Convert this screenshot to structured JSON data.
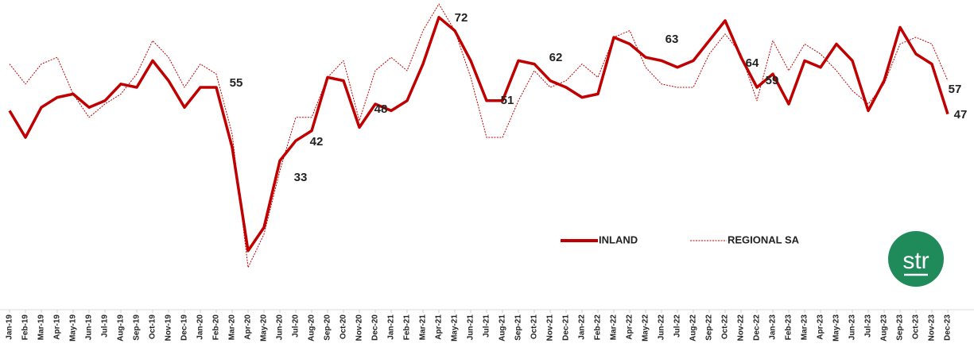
{
  "chart_data": {
    "type": "line",
    "categories": [
      "Jan-19",
      "Feb-19",
      "Mar-19",
      "Apr-19",
      "May-19",
      "Jun-19",
      "Jul-19",
      "Aug-19",
      "Sep-19",
      "Oct-19",
      "Nov-19",
      "Dec-19",
      "Jan-20",
      "Feb-20",
      "Mar-20",
      "Apr-20",
      "May-20",
      "Jun-20",
      "Jul-20",
      "Aug-20",
      "Sep-20",
      "Oct-20",
      "Nov-20",
      "Dec-20",
      "Jan-21",
      "Feb-21",
      "Mar-21",
      "Apr-21",
      "May-21",
      "Jun-21",
      "Jul-21",
      "Aug-21",
      "Sep-21",
      "Oct-21",
      "Nov-21",
      "Dec-21",
      "Jan-22",
      "Feb-22",
      "Mar-22",
      "Apr-22",
      "May-22",
      "Jun-22",
      "Jul-22",
      "Aug-22",
      "Sep-22",
      "Oct-22",
      "Nov-22",
      "Dec-22",
      "Jan-23",
      "Feb-23",
      "Mar-23",
      "Apr-23",
      "May-23",
      "Jun-23",
      "Jul-23",
      "Aug-23",
      "Sep-23",
      "Oct-23",
      "Nov-23",
      "Dec-23"
    ],
    "series": [
      {
        "name": "INLAND",
        "color": "#c00000",
        "values": [
          48,
          40,
          49,
          52,
          53,
          49,
          51,
          56,
          55,
          63,
          57,
          49,
          55,
          55,
          37,
          6,
          13,
          33,
          39,
          42,
          58,
          57,
          43,
          50,
          48,
          51,
          62,
          76,
          72,
          63,
          51,
          51,
          63,
          62,
          57,
          55,
          52,
          53,
          70,
          68,
          64,
          63,
          61,
          63,
          69,
          75,
          64,
          55,
          59,
          50,
          63,
          61,
          68,
          63,
          48,
          57,
          73,
          65,
          62,
          47
        ]
      },
      {
        "name": "REGIONAL SA",
        "color": "#c00000",
        "values": [
          62,
          56,
          62,
          64,
          53,
          46,
          50,
          53,
          59,
          69,
          64,
          55,
          62,
          59,
          41,
          1,
          11,
          30,
          46,
          46,
          58,
          63,
          45,
          60,
          64,
          60,
          72,
          80,
          72,
          58,
          40,
          40,
          51,
          60,
          55,
          57,
          62,
          58,
          70,
          72,
          61,
          56,
          55,
          55,
          65,
          71,
          65,
          51,
          69,
          60,
          68,
          65,
          60,
          54,
          50,
          56,
          68,
          70,
          68,
          57
        ]
      }
    ],
    "ylim": [
      0,
      80
    ],
    "logo": "str"
  }
}
